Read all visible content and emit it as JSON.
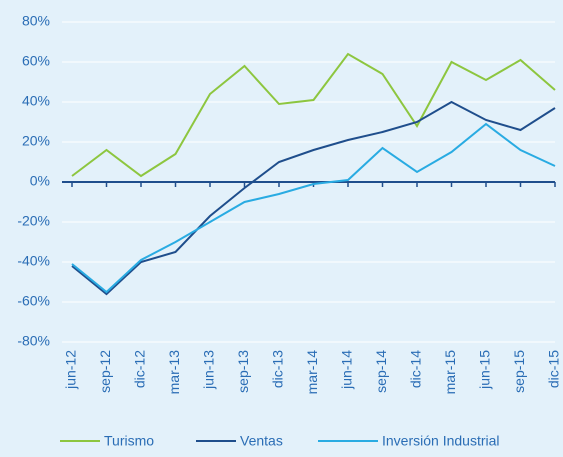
{
  "chart_data": {
    "type": "line",
    "categories": [
      "jun-12",
      "sep-12",
      "dic-12",
      "mar-13",
      "jun-13",
      "sep-13",
      "dic-13",
      "mar-14",
      "jun-14",
      "sep-14",
      "dic-14",
      "mar-15",
      "jun-15",
      "sep-15",
      "dic-15"
    ],
    "series": [
      {
        "name": "Turismo",
        "color": "#8dc63f",
        "values": [
          3,
          16,
          3,
          14,
          44,
          58,
          39,
          41,
          64,
          54,
          28,
          60,
          51,
          61,
          46
        ]
      },
      {
        "name": "Ventas",
        "color": "#1f4e8c",
        "values": [
          -42,
          -56,
          -40,
          -35,
          -17,
          -3,
          10,
          16,
          21,
          25,
          30,
          40,
          31,
          26,
          37
        ]
      },
      {
        "name": "Inversión Industrial",
        "color": "#29abe2",
        "values": [
          -41,
          -55,
          -39,
          -30,
          -20,
          -10,
          -6,
          -1,
          1,
          17,
          5,
          15,
          29,
          16,
          8
        ]
      }
    ],
    "ylim": [
      -80,
      80
    ],
    "yticks": [
      {
        "value": -80,
        "label": "-80%"
      },
      {
        "value": -60,
        "label": "-60%"
      },
      {
        "value": -40,
        "label": "-40%"
      },
      {
        "value": -20,
        "label": "-20%"
      },
      {
        "value": 0,
        "label": "0%"
      },
      {
        "value": 20,
        "label": "20%"
      },
      {
        "value": 40,
        "label": "40%"
      },
      {
        "value": 60,
        "label": "60%"
      },
      {
        "value": 80,
        "label": "80%"
      }
    ],
    "grid": true
  }
}
